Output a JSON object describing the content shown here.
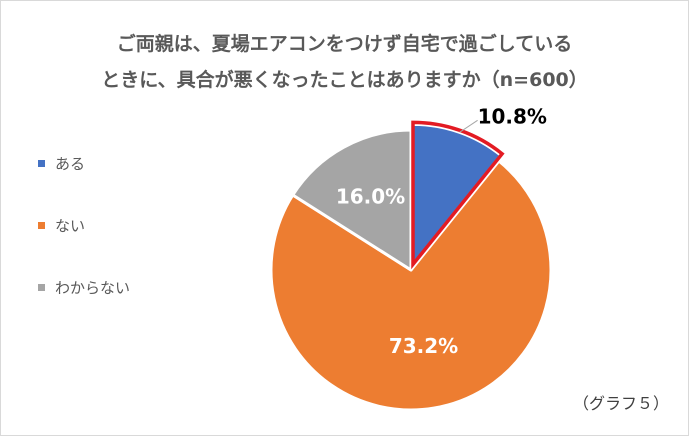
{
  "title_lines": [
    "ご両親は、夏場エアコンをつけず自宅で過ごしている",
    "ときに、具合が悪くなったことはありますか（n=600）"
  ],
  "note": "（グラフ５）",
  "colors": {
    "title": "#595959",
    "highlight": "#e31b23",
    "light_label": "#ffffff",
    "dark_label": "#000000"
  },
  "chart_data": {
    "type": "pie",
    "title": "ご両親は、夏場エアコンをつけず自宅で過ごしている ときに、具合が悪くなったことはありますか（n=600）",
    "legend_position": "left",
    "slices": [
      {
        "label": "ある",
        "value": 10.8,
        "display": "10.8%",
        "color": "#4472c4",
        "exploded": true,
        "highlighted": true
      },
      {
        "label": "ない",
        "value": 73.2,
        "display": "73.2%",
        "color": "#ed7d31",
        "exploded": false,
        "highlighted": false
      },
      {
        "label": "わからない",
        "value": 16.0,
        "display": "16.0%",
        "color": "#a5a5a5",
        "exploded": false,
        "highlighted": false
      }
    ]
  }
}
